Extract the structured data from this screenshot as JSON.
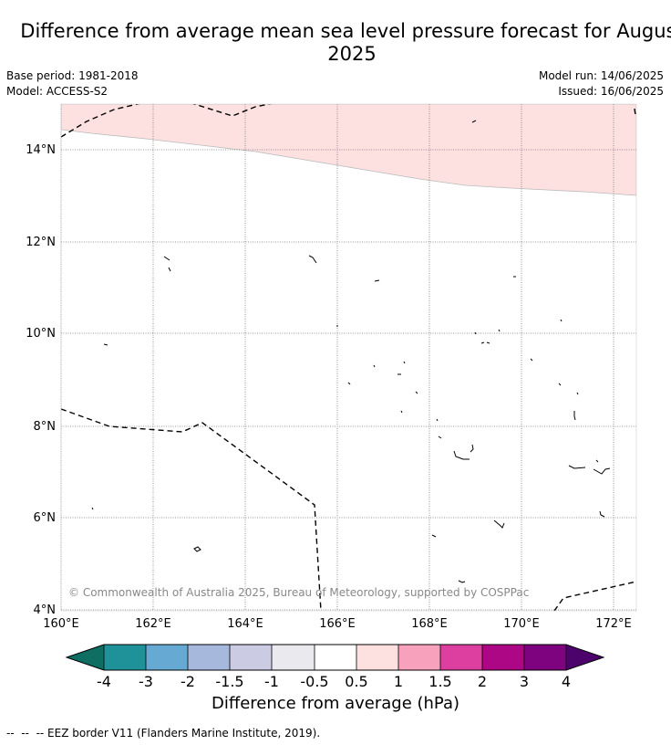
{
  "title": "Difference from average mean sea level pressure forecast for August 2025",
  "meta_left": {
    "base_period": "Base period: 1981-2018",
    "model": "Model: ACCESS-S2"
  },
  "meta_right": {
    "model_run": "Model run: 14/06/2025",
    "issued": "Issued: 16/06/2025"
  },
  "map": {
    "lat_ticks": [
      "14°N",
      "12°N",
      "10°N",
      "8°N",
      "6°N",
      "4°N"
    ],
    "lon_ticks": [
      "160°E",
      "162°E",
      "164°E",
      "166°E",
      "168°E",
      "170°E",
      "172°E"
    ],
    "copyright": "© Commonwealth of Australia 2025, Bureau of Meteorology, supported by COSPPac",
    "anomaly_fill_color": "#fde0e0",
    "shaded_region_category": "0.5 to 1"
  },
  "colorbar": {
    "title": "Difference from average (hPa)",
    "tick_labels": [
      "-4",
      "-3",
      "-2",
      "-1.5",
      "-1",
      "-0.5",
      "0.5",
      "1",
      "1.5",
      "2",
      "3",
      "4"
    ],
    "colors": [
      "#0e6e62",
      "#1f9299",
      "#66aad4",
      "#a6b8dc",
      "#cbcce4",
      "#e9e9ee",
      "#ffffff",
      "#fde0e0",
      "#f8a1bd",
      "#dc3f9f",
      "#ae0785",
      "#7e037e",
      "#4c036c"
    ]
  },
  "footnote": "--  --  -- EEZ border V11 (Flanders Marine Institute, 2019)."
}
